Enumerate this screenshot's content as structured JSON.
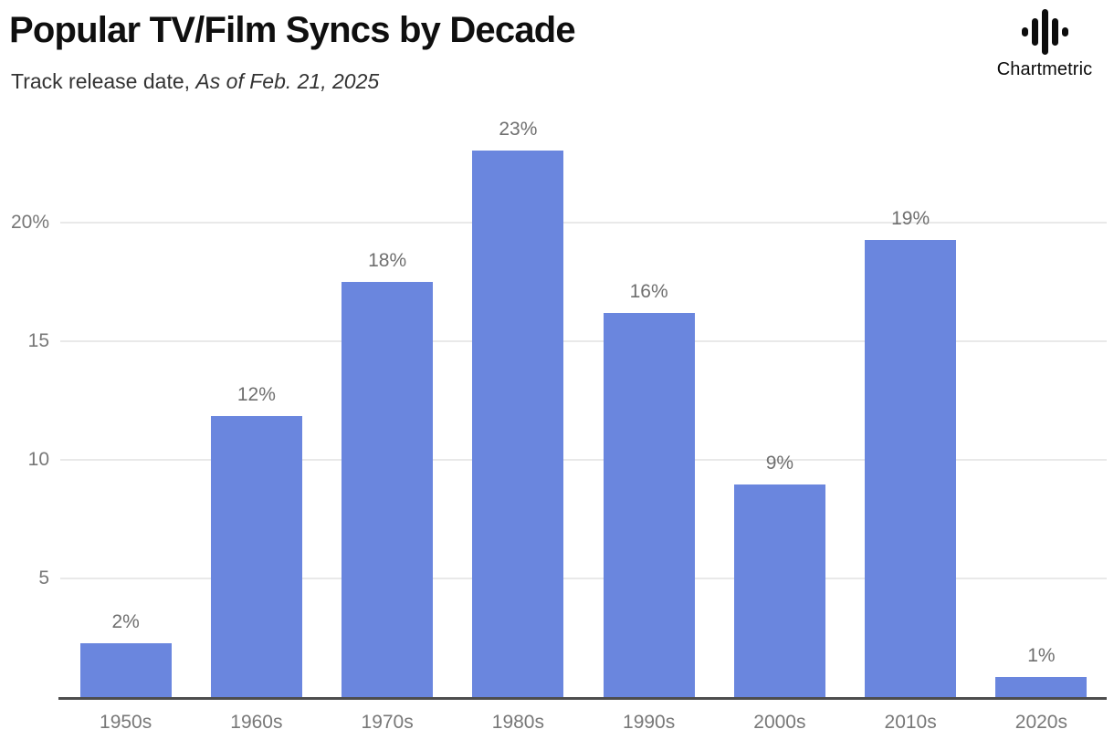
{
  "header": {
    "title": "Popular TV/Film Syncs by Decade",
    "subtitle_regular": "Track release date, ",
    "subtitle_italic": "As of Feb. 21, 2025"
  },
  "branding": {
    "name": "Chartmetric",
    "logo_icon": "waveform-icon",
    "logo_bar_heights": [
      10,
      30,
      50,
      30,
      10
    ]
  },
  "colors": {
    "bar": "#6A86DE",
    "grid": "#e9e9e9",
    "axis": "#4d4d4d",
    "tick_label": "#777777",
    "value_label": "#6f6f6f",
    "title": "#0f0f0f",
    "subtitle": "#333333"
  },
  "chart_data": {
    "type": "bar",
    "title": "Popular TV/Film Syncs by Decade",
    "subtitle": "Track release date, As of Feb. 21, 2025",
    "categories": [
      "1950s",
      "1960s",
      "1970s",
      "1980s",
      "1990s",
      "2000s",
      "2010s",
      "2020s"
    ],
    "values": [
      2,
      12,
      18,
      23,
      16,
      9,
      19,
      1
    ],
    "bar_labels": [
      "2%",
      "12%",
      "18%",
      "23%",
      "16%",
      "9%",
      "19%",
      "1%"
    ],
    "precise_heights": [
      2.25,
      11.85,
      17.5,
      23.05,
      16.2,
      8.95,
      19.25,
      0.85
    ],
    "unit": "%",
    "xlabel": "",
    "ylabel": "",
    "y_ticks": [
      {
        "value": 5,
        "label": "5"
      },
      {
        "value": 10,
        "label": "10"
      },
      {
        "value": 15,
        "label": "15"
      },
      {
        "value": 20,
        "label": "20%"
      }
    ],
    "ylim": [
      0,
      24
    ],
    "grid": "horizontal",
    "legend": "none",
    "bar_color": "#6A86DE"
  }
}
